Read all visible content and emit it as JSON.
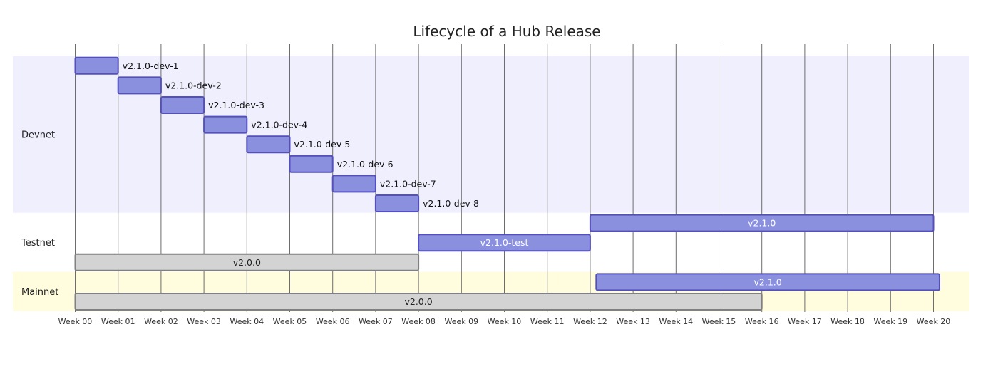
{
  "chart_data": {
    "type": "gantt",
    "title": "Lifecycle of a Hub Release",
    "x_unit": "week",
    "xlim": [
      0,
      21
    ],
    "ticks": [
      "Week 00",
      "Week 01",
      "Week 02",
      "Week 03",
      "Week 04",
      "Week 05",
      "Week 06",
      "Week 07",
      "Week 08",
      "Week 09",
      "Week 10",
      "Week 11",
      "Week 12",
      "Week 13",
      "Week 14",
      "Week 15",
      "Week 16",
      "Week 17",
      "Week 18",
      "Week 19",
      "Week 20"
    ],
    "sections": [
      {
        "name": "Devnet",
        "color": "#efeffd",
        "tasks": [
          {
            "label": "v2.1.0-dev-1",
            "start": 0,
            "end": 1,
            "style": "active",
            "label_pos": "outside"
          },
          {
            "label": "v2.1.0-dev-2",
            "start": 1,
            "end": 2,
            "style": "active",
            "label_pos": "outside"
          },
          {
            "label": "v2.1.0-dev-3",
            "start": 2,
            "end": 3,
            "style": "active",
            "label_pos": "outside"
          },
          {
            "label": "v2.1.0-dev-4",
            "start": 3,
            "end": 4,
            "style": "active",
            "label_pos": "outside"
          },
          {
            "label": "v2.1.0-dev-5",
            "start": 4,
            "end": 5,
            "style": "active",
            "label_pos": "outside"
          },
          {
            "label": "v2.1.0-dev-6",
            "start": 5,
            "end": 6,
            "style": "active",
            "label_pos": "outside"
          },
          {
            "label": "v2.1.0-dev-7",
            "start": 6,
            "end": 7,
            "style": "active",
            "label_pos": "outside"
          },
          {
            "label": "v2.1.0-dev-8",
            "start": 7,
            "end": 8,
            "style": "active",
            "label_pos": "outside"
          }
        ]
      },
      {
        "name": "Testnet",
        "color": "#ffffff",
        "tasks": [
          {
            "label": "v2.1.0",
            "start": 12,
            "end": 20,
            "style": "active",
            "label_pos": "inside"
          },
          {
            "label": "v2.1.0-test",
            "start": 8,
            "end": 12,
            "style": "active",
            "label_pos": "inside"
          },
          {
            "label": "v2.0.0",
            "start": 0,
            "end": 8,
            "style": "done",
            "label_pos": "inside"
          }
        ]
      },
      {
        "name": "Mainnet",
        "color": "#fffdde",
        "tasks": [
          {
            "label": "v2.1.0",
            "start": 12.14,
            "end": 20.14,
            "style": "active",
            "label_pos": "inside"
          },
          {
            "label": "v2.0.0",
            "start": 0,
            "end": 16,
            "style": "done",
            "label_pos": "inside"
          }
        ]
      }
    ],
    "colors": {
      "active_fill": "#8a90dd",
      "active_stroke": "#534fbc",
      "done_fill": "#d3d3d3",
      "done_stroke": "#808080",
      "grid": "#6d6d6d"
    }
  }
}
